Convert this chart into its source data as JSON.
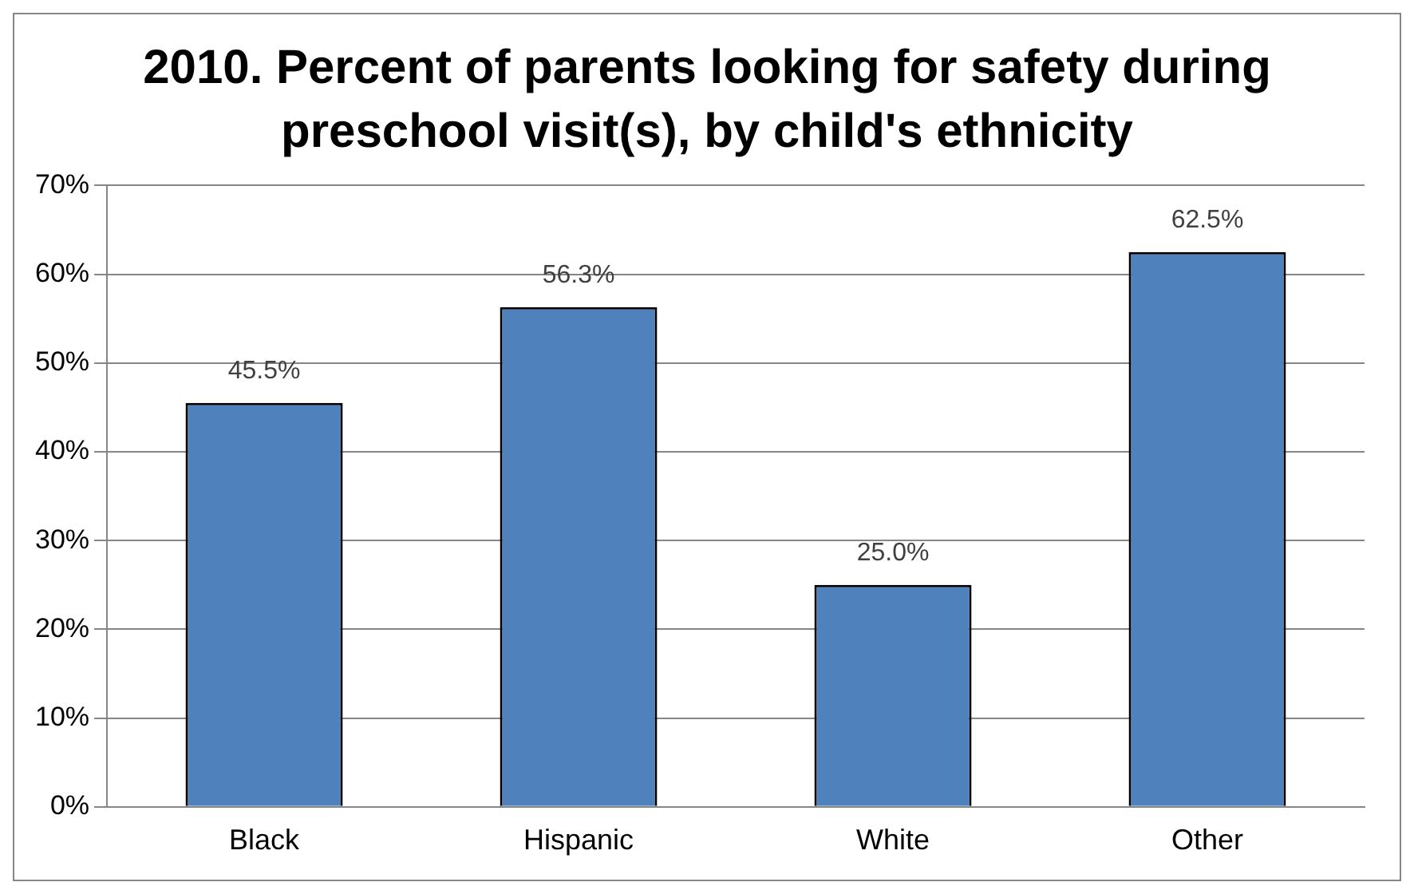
{
  "chart_data": {
    "type": "bar",
    "title": "2010. Percent of parents looking for safety during preschool visit(s), by child's ethnicity",
    "categories": [
      "Black",
      "Hispanic",
      "White",
      "Other"
    ],
    "values": [
      45.5,
      56.3,
      25.0,
      62.5
    ],
    "value_labels": [
      "45.5%",
      "56.3%",
      "25.0%",
      "62.5%"
    ],
    "color": "#4f81bd",
    "ylim": [
      0,
      70
    ],
    "yticks": [
      {
        "value": 0,
        "label": "0%"
      },
      {
        "value": 10,
        "label": "10%"
      },
      {
        "value": 20,
        "label": "20%"
      },
      {
        "value": 30,
        "label": "30%"
      },
      {
        "value": 40,
        "label": "40%"
      },
      {
        "value": 50,
        "label": "50%"
      },
      {
        "value": 60,
        "label": "60%"
      },
      {
        "value": 70,
        "label": "70%"
      }
    ],
    "grid": "y",
    "legend": false
  }
}
